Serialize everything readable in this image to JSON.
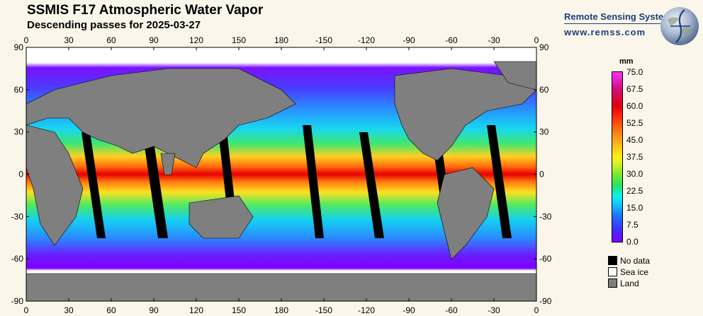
{
  "header": {
    "title": "SSMIS F17 Atmospheric Water Vapor",
    "subtitle": "Descending passes for 2025-03-27"
  },
  "brand": {
    "name": "Remote Sensing Systems",
    "url": "www.remss.com"
  },
  "map": {
    "lon_ticks": [
      "0",
      "30",
      "60",
      "90",
      "120",
      "150",
      "180",
      "-150",
      "-120",
      "-90",
      "-60",
      "-30",
      "0"
    ],
    "lat_ticks": [
      "90",
      "60",
      "30",
      "0",
      "-30",
      "-60",
      "-90"
    ],
    "lon_range": [
      0,
      360
    ],
    "lat_range": [
      -90,
      90
    ],
    "colors": {
      "ocean_base": "#00c8ff",
      "land": "#7f7f7f",
      "no_data": "#000000",
      "sea_ice": "#ffffff"
    }
  },
  "colorbar": {
    "unit": "mm",
    "labels": [
      "75.0",
      "67.5",
      "60.0",
      "52.5",
      "45.0",
      "37.5",
      "30.0",
      "22.5",
      "15.0",
      "7.5",
      "0.0"
    ],
    "range": [
      0,
      75
    ]
  },
  "legend": {
    "items": [
      {
        "label": "No data",
        "color": "#000000"
      },
      {
        "label": "Sea ice",
        "color": "#ffffff"
      },
      {
        "label": "Land",
        "color": "#7f7f7f"
      }
    ]
  }
}
